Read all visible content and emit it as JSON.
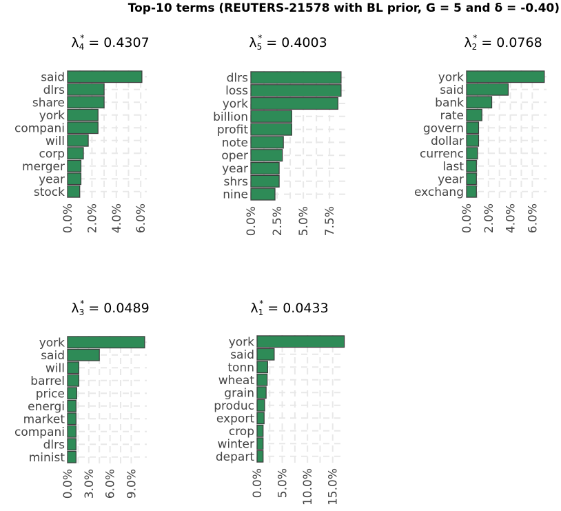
{
  "page_title": "Top-10 terms (REUTERS-21578 with BL prior, G = 5 and δ = -0.40)",
  "colors": {
    "bar_fill": "#2e8b57",
    "bar_stroke": "#3a3a3a",
    "grid": "#e8e8e8",
    "text": "#444444"
  },
  "chart_data": [
    {
      "type": "bar",
      "title_symbol": "λ",
      "title_subscript": "4",
      "title_superscript": "*",
      "title_value": " = 0.4307",
      "categories": [
        "said",
        "dlrs",
        "share",
        "york",
        "compani",
        "will",
        "corp",
        "merger",
        "year",
        "stock"
      ],
      "values": [
        6.1,
        3.0,
        3.0,
        2.5,
        2.5,
        1.7,
        1.3,
        1.1,
        1.1,
        1.0
      ],
      "xlim": [
        0,
        6.5
      ],
      "ticks": [
        0,
        2,
        4,
        6
      ],
      "tick_labels": [
        "0.0%",
        "2.0%",
        "4.0%",
        "6.0%"
      ],
      "grid": true
    },
    {
      "type": "bar",
      "title_symbol": "λ",
      "title_subscript": "5",
      "title_superscript": "*",
      "title_value": " = 0.4003",
      "categories": [
        "dlrs",
        "loss",
        "york",
        "billion",
        "profit",
        "note",
        "oper",
        "year",
        "shrs",
        "nine"
      ],
      "values": [
        8.6,
        8.6,
        8.3,
        3.9,
        3.9,
        3.1,
        3.0,
        2.7,
        2.7,
        2.3
      ],
      "xlim": [
        0,
        9.0
      ],
      "ticks": [
        0,
        2.5,
        5.0,
        7.5
      ],
      "tick_labels": [
        "0.0%",
        "2.5%",
        "5.0%",
        "7.5%"
      ],
      "grid": true
    },
    {
      "type": "bar",
      "title_symbol": "λ",
      "title_subscript": "2",
      "title_superscript": "*",
      "title_value": " = 0.0768",
      "categories": [
        "york",
        "said",
        "bank",
        "rate",
        "govern",
        "dollar",
        "currenc",
        "last",
        "year",
        "exchang"
      ],
      "values": [
        7.1,
        3.8,
        2.3,
        1.4,
        1.1,
        1.1,
        1.0,
        0.9,
        0.9,
        0.9
      ],
      "xlim": [
        0,
        7.3
      ],
      "ticks": [
        0,
        2,
        4,
        6
      ],
      "tick_labels": [
        "0.0%",
        "2.0%",
        "4.0%",
        "6.0%"
      ],
      "grid": true
    },
    {
      "type": "bar",
      "title_symbol": "λ",
      "title_subscript": "3",
      "title_superscript": "*",
      "title_value": " = 0.0489",
      "categories": [
        "york",
        "said",
        "will",
        "barrel",
        "price",
        "energi",
        "market",
        "compani",
        "dlrs",
        "minist"
      ],
      "values": [
        10.9,
        4.5,
        1.6,
        1.6,
        1.3,
        1.2,
        1.2,
        1.2,
        1.2,
        1.2
      ],
      "xlim": [
        0,
        11.2
      ],
      "ticks": [
        0,
        3,
        6,
        9
      ],
      "tick_labels": [
        "0.0%",
        "3.0%",
        "6.0%",
        "9.0%"
      ],
      "grid": true
    },
    {
      "type": "bar",
      "title_symbol": "λ",
      "title_subscript": "1",
      "title_superscript": "*",
      "title_value": " = 0.0433",
      "categories": [
        "york",
        "said",
        "tonn",
        "wheat",
        "grain",
        "produc",
        "export",
        "crop",
        "winter",
        "depart"
      ],
      "values": [
        17.3,
        3.4,
        2.1,
        2.0,
        1.8,
        1.5,
        1.4,
        1.2,
        1.2,
        1.2
      ],
      "xlim": [
        0,
        17.5
      ],
      "ticks": [
        0,
        5,
        10,
        15
      ],
      "tick_labels": [
        "0.0%",
        "5.0%",
        "10.0%",
        "15.0%"
      ],
      "grid": true
    }
  ]
}
